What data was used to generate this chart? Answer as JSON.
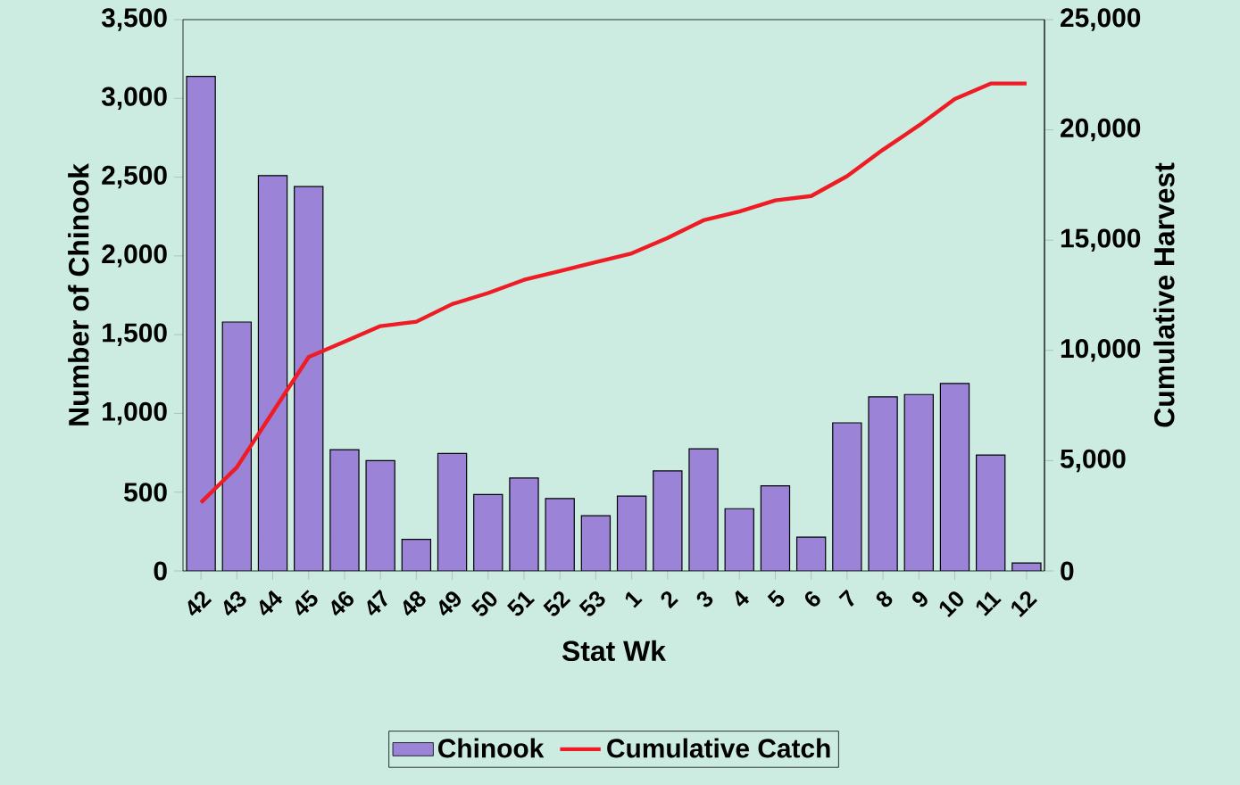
{
  "chart_data": {
    "type": "bar",
    "xlabel": "Stat Wk",
    "ylabel": "Number of Chinook",
    "y2label": "Cumulative Harvest",
    "categories": [
      "42",
      "43",
      "44",
      "45",
      "46",
      "47",
      "48",
      "49",
      "50",
      "51",
      "52",
      "53",
      "1",
      "2",
      "3",
      "4",
      "5",
      "6",
      "7",
      "8",
      "9",
      "10",
      "11",
      "12"
    ],
    "series": [
      {
        "name": "Chinook",
        "color": "#9b84d8",
        "values": [
          3140,
          1580,
          2510,
          2440,
          770,
          700,
          200,
          745,
          485,
          590,
          460,
          350,
          475,
          635,
          775,
          395,
          540,
          215,
          940,
          1105,
          1120,
          1190,
          735,
          50
        ]
      },
      {
        "name": "Cumulative Catch",
        "type": "line",
        "axis": "y2",
        "color": "#ee1c25",
        "values": [
          3100,
          4700,
          7200,
          9700,
          10400,
          11100,
          11300,
          12100,
          12600,
          13200,
          13600,
          14000,
          14400,
          15100,
          15900,
          16300,
          16800,
          17000,
          17900,
          19100,
          20200,
          21400,
          22100,
          22100
        ]
      }
    ],
    "ylim": [
      0,
      3500
    ],
    "yticks": [
      0,
      500,
      {
        "value": 1000,
        "label": "1,000"
      },
      {
        "value": 1500,
        "label": "1,500"
      },
      {
        "value": 2000,
        "label": "2,000"
      },
      {
        "value": 2500,
        "label": "2,500"
      },
      {
        "value": 3000,
        "label": "3,000"
      },
      {
        "value": 3500,
        "label": "3,500"
      }
    ],
    "y2lim": [
      0,
      25000
    ],
    "y2ticks": [
      0,
      {
        "value": 5000,
        "label": "5,000"
      },
      {
        "value": 10000,
        "label": "10,000"
      },
      {
        "value": 15000,
        "label": "15,000"
      },
      {
        "value": 20000,
        "label": "20,000"
      },
      {
        "value": 25000,
        "label": "25,000"
      }
    ],
    "legend": "bottom"
  }
}
